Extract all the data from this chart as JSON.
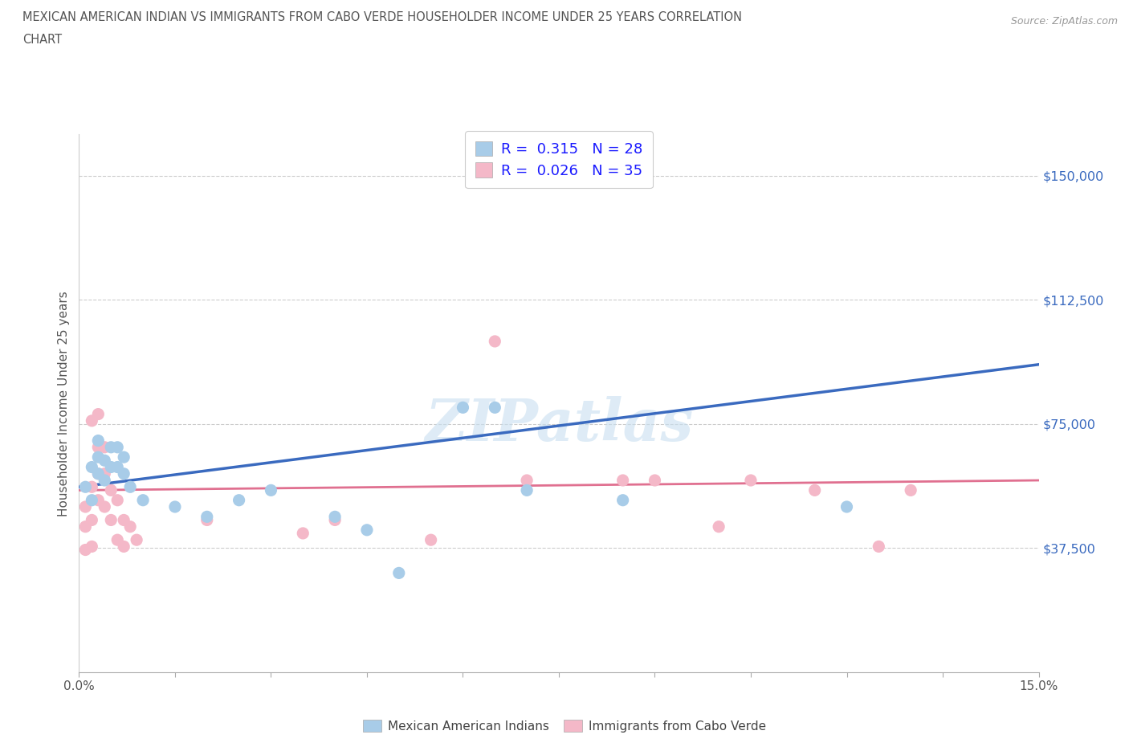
{
  "title_line1": "MEXICAN AMERICAN INDIAN VS IMMIGRANTS FROM CABO VERDE HOUSEHOLDER INCOME UNDER 25 YEARS CORRELATION",
  "title_line2": "CHART",
  "source_text": "Source: ZipAtlas.com",
  "ylabel": "Householder Income Under 25 years",
  "xmin": 0.0,
  "xmax": 0.15,
  "ymin": 0,
  "ymax": 162500,
  "yticks": [
    37500,
    75000,
    112500,
    150000
  ],
  "ytick_labels": [
    "$37,500",
    "$75,000",
    "$112,500",
    "$150,000"
  ],
  "xticks": [
    0.0,
    0.015,
    0.03,
    0.045,
    0.06,
    0.075,
    0.09,
    0.105,
    0.12,
    0.135,
    0.15
  ],
  "xtick_labels": [
    "0.0%",
    "",
    "",
    "",
    "",
    "",
    "",
    "",
    "",
    "",
    "15.0%"
  ],
  "blue_R": 0.315,
  "blue_N": 28,
  "pink_R": 0.026,
  "pink_N": 35,
  "watermark": "ZIPatlas",
  "blue_color": "#a8cce8",
  "pink_color": "#f4b8c8",
  "blue_line_color": "#3a6abf",
  "pink_line_color": "#e07090",
  "blue_scatter": [
    [
      0.001,
      56000
    ],
    [
      0.002,
      52000
    ],
    [
      0.002,
      62000
    ],
    [
      0.003,
      60000
    ],
    [
      0.003,
      65000
    ],
    [
      0.003,
      70000
    ],
    [
      0.004,
      58000
    ],
    [
      0.004,
      64000
    ],
    [
      0.005,
      62000
    ],
    [
      0.005,
      68000
    ],
    [
      0.006,
      62000
    ],
    [
      0.006,
      68000
    ],
    [
      0.007,
      60000
    ],
    [
      0.007,
      65000
    ],
    [
      0.008,
      56000
    ],
    [
      0.01,
      52000
    ],
    [
      0.015,
      50000
    ],
    [
      0.02,
      47000
    ],
    [
      0.025,
      52000
    ],
    [
      0.03,
      55000
    ],
    [
      0.04,
      47000
    ],
    [
      0.045,
      43000
    ],
    [
      0.05,
      30000
    ],
    [
      0.06,
      80000
    ],
    [
      0.065,
      80000
    ],
    [
      0.07,
      55000
    ],
    [
      0.085,
      52000
    ],
    [
      0.12,
      50000
    ]
  ],
  "pink_scatter": [
    [
      0.001,
      50000
    ],
    [
      0.001,
      44000
    ],
    [
      0.001,
      37000
    ],
    [
      0.002,
      56000
    ],
    [
      0.002,
      46000
    ],
    [
      0.002,
      38000
    ],
    [
      0.002,
      76000
    ],
    [
      0.003,
      52000
    ],
    [
      0.003,
      60000
    ],
    [
      0.003,
      68000
    ],
    [
      0.003,
      78000
    ],
    [
      0.004,
      50000
    ],
    [
      0.004,
      60000
    ],
    [
      0.004,
      68000
    ],
    [
      0.005,
      55000
    ],
    [
      0.005,
      46000
    ],
    [
      0.006,
      40000
    ],
    [
      0.006,
      52000
    ],
    [
      0.007,
      38000
    ],
    [
      0.007,
      46000
    ],
    [
      0.008,
      44000
    ],
    [
      0.009,
      40000
    ],
    [
      0.02,
      46000
    ],
    [
      0.035,
      42000
    ],
    [
      0.04,
      46000
    ],
    [
      0.055,
      40000
    ],
    [
      0.065,
      100000
    ],
    [
      0.07,
      58000
    ],
    [
      0.085,
      58000
    ],
    [
      0.09,
      58000
    ],
    [
      0.1,
      44000
    ],
    [
      0.105,
      58000
    ],
    [
      0.115,
      55000
    ],
    [
      0.125,
      38000
    ],
    [
      0.13,
      55000
    ]
  ],
  "blue_line_x": [
    0.0,
    0.15
  ],
  "blue_line_y": [
    56000,
    93000
  ],
  "pink_line_x": [
    0.0,
    0.15
  ],
  "pink_line_y": [
    55000,
    58000
  ]
}
